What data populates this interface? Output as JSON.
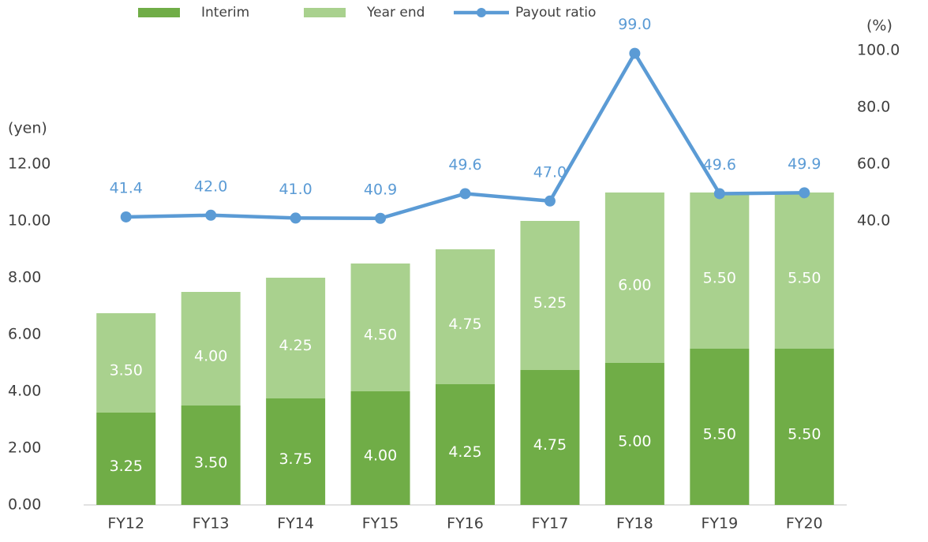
{
  "chart_data": {
    "type": "bar",
    "categories": [
      "FY12",
      "FY13",
      "FY14",
      "FY15",
      "FY16",
      "FY17",
      "FY18",
      "FY19",
      "FY20"
    ],
    "y_axis_label": "(yen)",
    "y2_axis_label": "(%)",
    "stacked": true,
    "series": [
      {
        "name": "Interim",
        "color": "#70ad47",
        "values": [
          3.25,
          3.5,
          3.75,
          4,
          4.25,
          4.75,
          5,
          5.5,
          5.5
        ],
        "value_labels": [
          "3.25",
          "3.50",
          "3.75",
          "4.00",
          "4.25",
          "4.75",
          "5.00",
          "5.50",
          "5.50"
        ]
      },
      {
        "name": "Year end",
        "color": "#a9d18e",
        "values": [
          3.5,
          4,
          4.25,
          4.5,
          4.75,
          5.25,
          6,
          5.5,
          5.5
        ],
        "value_labels": [
          "3.50",
          "4.00",
          "4.25",
          "4.50",
          "4.75",
          "5.25",
          "6.00",
          "5.50",
          "5.50"
        ]
      },
      {
        "name": "Payout ratio",
        "type": "line",
        "axis": "y2",
        "color": "#5b9bd5",
        "values": [
          41.4,
          42,
          41,
          40.9,
          49.6,
          47,
          99,
          49.6,
          49.9
        ],
        "value_labels": [
          "41.4",
          "42.0",
          "41.0",
          "40.9",
          "49.6",
          "47.0",
          "99.0",
          "49.6",
          "49.9"
        ]
      }
    ],
    "ylim": [
      0,
      16
    ],
    "yticks": [
      {
        "value": 0,
        "label": "0.00"
      },
      {
        "value": 2,
        "label": "2.00"
      },
      {
        "value": 4,
        "label": "4.00"
      },
      {
        "value": 6,
        "label": "6.00"
      },
      {
        "value": 8,
        "label": "8.00"
      },
      {
        "value": 10,
        "label": "10.00"
      },
      {
        "value": 12,
        "label": "12.00"
      }
    ],
    "y2lim": [
      -60,
      100
    ],
    "y2ticks": [
      {
        "value": 40,
        "label": "40.0"
      },
      {
        "value": 60,
        "label": "60.0"
      },
      {
        "value": 80,
        "label": "80.0"
      },
      {
        "value": 100,
        "label": "100.0"
      }
    ],
    "legend": "top"
  }
}
